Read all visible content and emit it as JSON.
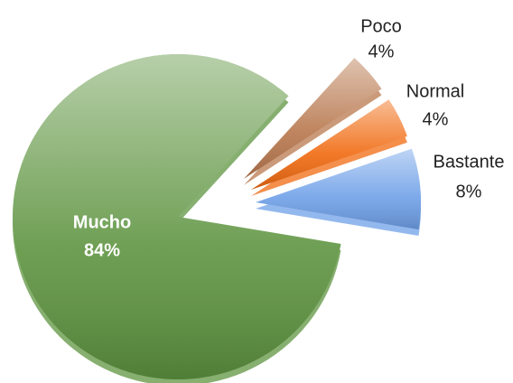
{
  "chart_data": {
    "type": "pie",
    "categories": [
      "Poco",
      "Normal",
      "Bastante",
      "Mucho"
    ],
    "values": [
      4,
      4,
      8,
      84
    ],
    "value_labels": [
      "4%",
      "4%",
      "8%",
      "84%"
    ],
    "colors": [
      "#b8784e",
      "#f06a10",
      "#6fa0e8",
      "#5e9440"
    ]
  }
}
